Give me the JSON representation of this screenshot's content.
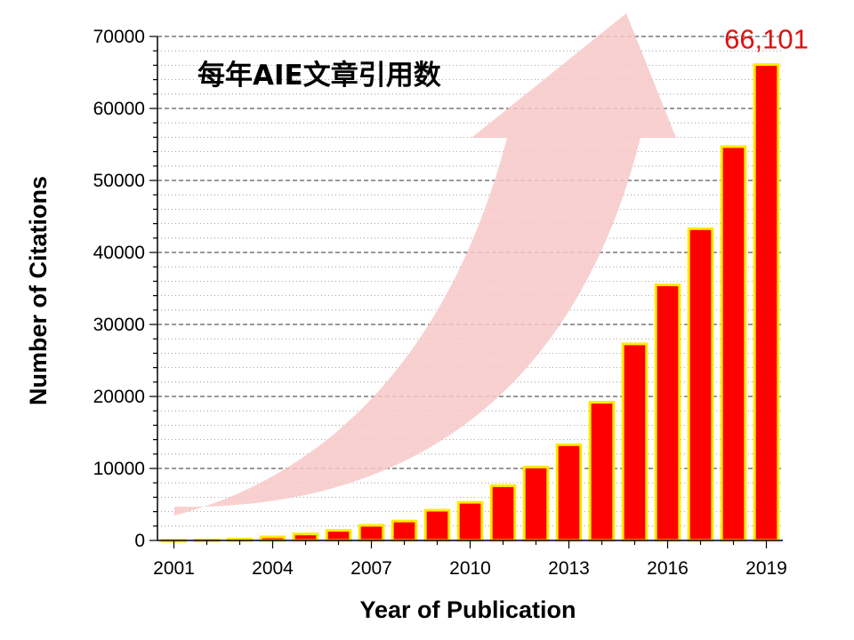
{
  "chart_data": {
    "type": "bar",
    "title": "每年AIE文章引用数",
    "xlabel": "Year of Publication",
    "ylabel": "Number of Citations",
    "ylim": [
      0,
      70000
    ],
    "y_ticks": [
      "0",
      "10000",
      "20000",
      "30000",
      "40000",
      "50000",
      "60000",
      "70000"
    ],
    "x_tick_labels": [
      "2001",
      "2004",
      "2007",
      "2010",
      "2013",
      "2016",
      "2019"
    ],
    "categories": [
      "2001",
      "2002",
      "2003",
      "2004",
      "2005",
      "2006",
      "2007",
      "2008",
      "2009",
      "2010",
      "2011",
      "2012",
      "2013",
      "2014",
      "2015",
      "2016",
      "2017",
      "2018",
      "2019"
    ],
    "values": [
      20,
      60,
      200,
      500,
      900,
      1400,
      2100,
      2700,
      4200,
      5300,
      7600,
      10200,
      13300,
      19200,
      27300,
      35500,
      43300,
      54700,
      66101
    ],
    "annotations": [
      {
        "text": "66,101",
        "category": "2019"
      }
    ],
    "grid": true,
    "colors": {
      "bar_fill": "#ff0000",
      "bar_edge": "#ffea00",
      "value_label": "#e01010",
      "arrow": "#f7c8c8"
    }
  }
}
